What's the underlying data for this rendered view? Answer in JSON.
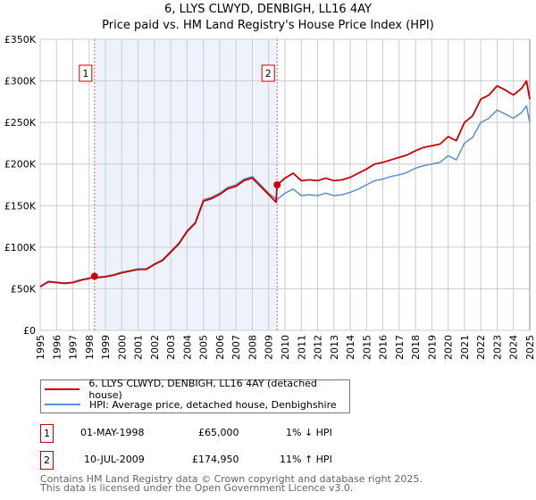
{
  "chart_data": {
    "type": "line",
    "title": "6, LLYS CLWYD, DENBIGH, LL16 4AY",
    "subtitle": "Price paid vs. HM Land Registry's House Price Index (HPI)",
    "xlim": [
      1995,
      2025
    ],
    "ylim": [
      0,
      350000
    ],
    "y_ticks": [
      0,
      50000,
      100000,
      150000,
      200000,
      250000,
      300000,
      350000
    ],
    "y_tick_labels": [
      "£0",
      "£50K",
      "£100K",
      "£150K",
      "£200K",
      "£250K",
      "£300K",
      "£350K"
    ],
    "x_ticks": [
      1995,
      1996,
      1997,
      1998,
      1999,
      2000,
      2001,
      2002,
      2003,
      2004,
      2005,
      2006,
      2007,
      2008,
      2009,
      2010,
      2011,
      2012,
      2013,
      2014,
      2015,
      2016,
      2017,
      2018,
      2019,
      2020,
      2021,
      2022,
      2023,
      2024,
      2025
    ],
    "grid": true,
    "legend_placement": "below",
    "series": [
      {
        "name": "6, LLYS CLWYD, DENBIGH, LL16 4AY (detached house)",
        "color": "#cc0000",
        "x": [
          1995,
          1995.5,
          1996,
          1996.5,
          1997,
          1997.5,
          1998,
          1998.33,
          1998.5,
          1999,
          1999.5,
          2000,
          2000.5,
          2001,
          2001.5,
          2002,
          2002.5,
          2003,
          2003.5,
          2004,
          2004.5,
          2005,
          2005.5,
          2006,
          2006.5,
          2007,
          2007.5,
          2008,
          2008.5,
          2009,
          2009.45,
          2009.52,
          2010,
          2010.5,
          2011,
          2011.5,
          2012,
          2012.5,
          2013,
          2013.5,
          2014,
          2014.5,
          2015,
          2015.5,
          2016,
          2016.5,
          2017,
          2017.5,
          2018,
          2018.5,
          2019,
          2019.5,
          2020,
          2020.5,
          2021,
          2021.5,
          2022,
          2022.5,
          2023,
          2023.5,
          2024,
          2024.5,
          2024.8,
          2025
        ],
        "y": [
          52500,
          58400,
          57400,
          56400,
          57400,
          60400,
          62400,
          65000,
          63400,
          64400,
          66300,
          69300,
          71300,
          73300,
          73300,
          79200,
          84200,
          94000,
          104000,
          118800,
          128700,
          155400,
          158400,
          163400,
          170300,
          173300,
          180200,
          183200,
          173300,
          163400,
          154000,
          174950,
          183000,
          189000,
          180000,
          181000,
          180000,
          183000,
          180000,
          181000,
          184000,
          189000,
          194000,
          200000,
          202000,
          205000,
          208000,
          211000,
          216000,
          220000,
          222000,
          224000,
          233000,
          228000,
          250000,
          258000,
          278000,
          283000,
          294000,
          289000,
          283000,
          291000,
          300000,
          278000
        ]
      },
      {
        "name": "HPI: Average price, detached house, Denbighshire",
        "color": "#5b8fd4",
        "x": [
          1995,
          1995.5,
          1996,
          1996.5,
          1997,
          1997.5,
          1998,
          1998.5,
          1999,
          1999.5,
          2000,
          2000.5,
          2001,
          2001.5,
          2002,
          2002.5,
          2003,
          2003.5,
          2004,
          2004.5,
          2005,
          2005.5,
          2006,
          2006.5,
          2007,
          2007.5,
          2008,
          2008.5,
          2009,
          2009.5,
          2010,
          2010.5,
          2011,
          2011.5,
          2012,
          2012.5,
          2013,
          2013.5,
          2014,
          2014.5,
          2015,
          2015.5,
          2016,
          2016.5,
          2017,
          2017.5,
          2018,
          2018.5,
          2019,
          2019.5,
          2020,
          2020.5,
          2021,
          2021.5,
          2022,
          2022.5,
          2023,
          2023.5,
          2024,
          2024.5,
          2024.8,
          2025
        ],
        "y": [
          53000,
          59000,
          58000,
          57000,
          58000,
          61000,
          63000,
          64000,
          65000,
          67000,
          70000,
          72000,
          74000,
          74000,
          80000,
          85000,
          95000,
          105000,
          120000,
          130000,
          157000,
          160000,
          165000,
          172000,
          175000,
          182000,
          185000,
          175000,
          165000,
          157000,
          165000,
          170000,
          162000,
          163000,
          162000,
          165000,
          162000,
          163000,
          166000,
          170000,
          175000,
          180000,
          182000,
          185000,
          187000,
          190000,
          195000,
          198000,
          200000,
          202000,
          210000,
          205000,
          225000,
          232000,
          250000,
          255000,
          265000,
          260000,
          255000,
          262000,
          270000,
          250000
        ]
      }
    ],
    "annotations": [
      {
        "label": "1",
        "x": 1998.33,
        "y": 65000
      },
      {
        "label": "2",
        "x": 2009.52,
        "y": 174950
      }
    ]
  },
  "sales": [
    {
      "num": "1",
      "date": "01-MAY-1998",
      "price": "£65,000",
      "hpi": "1% ↓ HPI"
    },
    {
      "num": "2",
      "date": "10-JUL-2009",
      "price": "£174,950",
      "hpi": "11% ↑ HPI"
    }
  ],
  "footer": [
    "Contains HM Land Registry data © Crown copyright and database right 2025.",
    "This data is licensed under the Open Government Licence v3.0."
  ]
}
